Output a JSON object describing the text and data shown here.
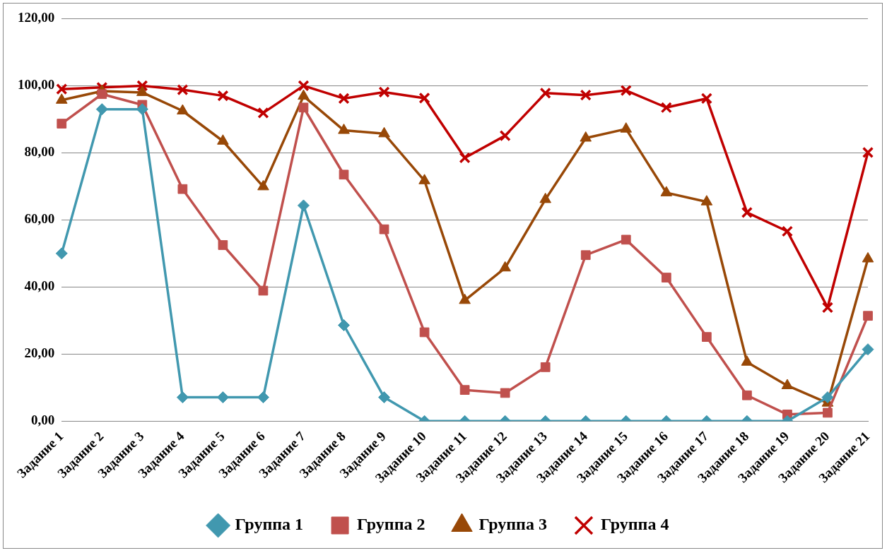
{
  "chart_data": {
    "type": "line",
    "categories": [
      "Задание 1",
      "Задание 2",
      "Задание 3",
      "Задание 4",
      "Задание 5",
      "Задание 6",
      "Задание 7",
      "Задание 8",
      "Задание 9",
      "Задание 10",
      "Задание 11",
      "Задание 12",
      "Задание 13",
      "Задание 14",
      "Задание 15",
      "Задание 16",
      "Задание 17",
      "Задание 18",
      "Задание 19",
      "Задание 20",
      "Задание 21"
    ],
    "series": [
      {
        "name": "Группа 1",
        "color": "#4198af",
        "marker": "diamond",
        "values": [
          50,
          93,
          93,
          7.1,
          7.1,
          7.1,
          64.3,
          28.6,
          7.1,
          0,
          0,
          0,
          0,
          0,
          0,
          0,
          0,
          0,
          0,
          7.1,
          21.4
        ]
      },
      {
        "name": "Группа 2",
        "color": "#c0504d",
        "marker": "square",
        "values": [
          88.7,
          97.5,
          94.3,
          69.2,
          52.5,
          38.9,
          93.5,
          73.5,
          57.2,
          26.5,
          9.3,
          8.4,
          16.1,
          49.5,
          54.1,
          42.8,
          25.1,
          7.7,
          2,
          2.5,
          31.4
        ]
      },
      {
        "name": "Группа 3",
        "color": "#984807",
        "marker": "triangle",
        "values": [
          95.7,
          98.4,
          98,
          92.5,
          83.5,
          69.9,
          96.9,
          86.7,
          85.7,
          71.7,
          36,
          45.7,
          66.1,
          84.4,
          87.1,
          68.1,
          65.4,
          17.6,
          10.6,
          5.4,
          48.4
        ]
      },
      {
        "name": "Группа 4",
        "color": "#c00000",
        "marker": "cross",
        "values": [
          99,
          99.5,
          100,
          98.8,
          97,
          91.9,
          100,
          96.2,
          98.1,
          96.3,
          78.5,
          85.1,
          97.8,
          97.2,
          98.6,
          93.5,
          96.2,
          62.2,
          56.6,
          33.9,
          80.1
        ]
      }
    ],
    "ylim": [
      0,
      120
    ],
    "yticks": [
      {
        "value": 0,
        "label": "0,00"
      },
      {
        "value": 20,
        "label": "20,00"
      },
      {
        "value": 40,
        "label": "40,00"
      },
      {
        "value": 60,
        "label": "60,00"
      },
      {
        "value": 80,
        "label": "80,00"
      },
      {
        "value": 100,
        "label": "100,00"
      },
      {
        "value": 120,
        "label": "120,00"
      }
    ],
    "grid": "y",
    "legend": "bottom",
    "line_style": "solid"
  }
}
